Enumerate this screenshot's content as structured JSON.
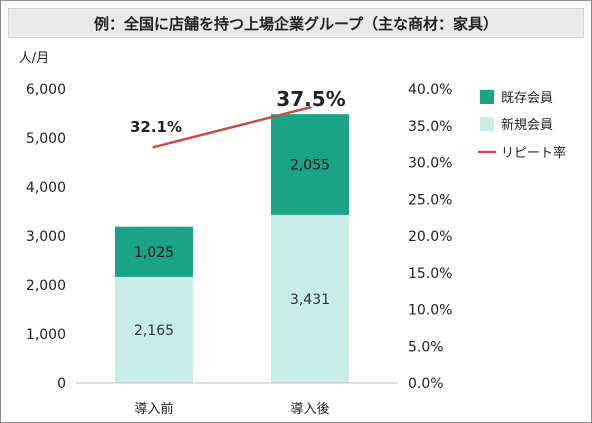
{
  "chart_data": {
    "type": "bar+line",
    "title": "例：全国に店舗を持つ上場企業グループ（主な商材：家具）",
    "left_axis": {
      "unit_label": "人/月",
      "ylim": [
        0,
        6000
      ],
      "ticks": [
        "0",
        "1,000",
        "2,000",
        "3,000",
        "4,000",
        "5,000",
        "6,000"
      ],
      "tick_values": [
        0,
        1000,
        2000,
        3000,
        4000,
        5000,
        6000
      ]
    },
    "right_axis": {
      "ylim": [
        0,
        40
      ],
      "ticks": [
        "0.0%",
        "5.0%",
        "10.0%",
        "15.0%",
        "20.0%",
        "25.0%",
        "30.0%",
        "35.0%",
        "40.0%"
      ],
      "tick_values": [
        0,
        5,
        10,
        15,
        20,
        25,
        30,
        35,
        40
      ]
    },
    "categories": [
      "導入前",
      "導入後"
    ],
    "series": [
      {
        "name": "新規会員",
        "kind": "bar",
        "stack": "members",
        "color": "#c8ece8",
        "values": [
          2165,
          3431
        ],
        "labels": [
          "2,165",
          "3,431"
        ]
      },
      {
        "name": "既存会員",
        "kind": "bar",
        "stack": "members",
        "color": "#1aa386",
        "values": [
          1025,
          2055
        ],
        "labels": [
          "1,025",
          "2,055"
        ]
      },
      {
        "name": "リピート率",
        "kind": "line",
        "axis": "right",
        "color": "#c0504d",
        "values": [
          32.1,
          37.5
        ],
        "labels": [
          "32.1%",
          "37.5%"
        ]
      }
    ],
    "legend": {
      "placement": "right",
      "items": [
        {
          "name": "既存会員",
          "color": "#1aa386",
          "shape": "square"
        },
        {
          "name": "新規会員",
          "color": "#c8ece8",
          "shape": "square"
        },
        {
          "name": "リピート率",
          "color": "#c0504d",
          "shape": "line"
        }
      ]
    },
    "grid": false
  }
}
